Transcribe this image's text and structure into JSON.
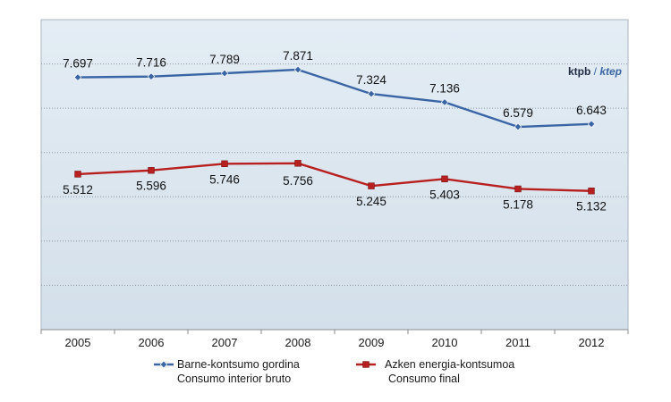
{
  "chart_data": {
    "type": "line",
    "title": "",
    "unit_primary": "ktpb",
    "unit_separator": " / ",
    "unit_secondary": "ktep",
    "xlabel": "",
    "ylabel": "",
    "categories": [
      "2005",
      "2006",
      "2007",
      "2008",
      "2009",
      "2010",
      "2011",
      "2012"
    ],
    "ylim": [
      2000,
      9000
    ],
    "grid": true,
    "legend_position": "bottom",
    "series": [
      {
        "name": "Barne-kontsumo gordina",
        "name_secondary": "Consumo interior bruto",
        "values": [
          7697,
          7716,
          7789,
          7871,
          7324,
          7136,
          6579,
          6643
        ],
        "labels": [
          "7.697",
          "7.716",
          "7.789",
          "7.871",
          "7.324",
          "7.136",
          "6.579",
          "6.643"
        ],
        "color": "#3a65a5",
        "marker": "diamond"
      },
      {
        "name": "Azken energia-kontsumoa",
        "name_secondary": "Consumo final",
        "values": [
          5512,
          5596,
          5746,
          5756,
          5245,
          5403,
          5178,
          5132
        ],
        "labels": [
          "5.512",
          "5.596",
          "5.746",
          "5.756",
          "5.245",
          "5.403",
          "5.178",
          "5.132"
        ],
        "color": "#b8201f",
        "marker": "square"
      }
    ]
  },
  "colors": {
    "plot_background": "#d8e4ee",
    "gridline": "#8d96a1",
    "frame": "#a9b4bf",
    "unit_primary": "#1f2a44",
    "unit_secondary": "#3a65a5"
  }
}
